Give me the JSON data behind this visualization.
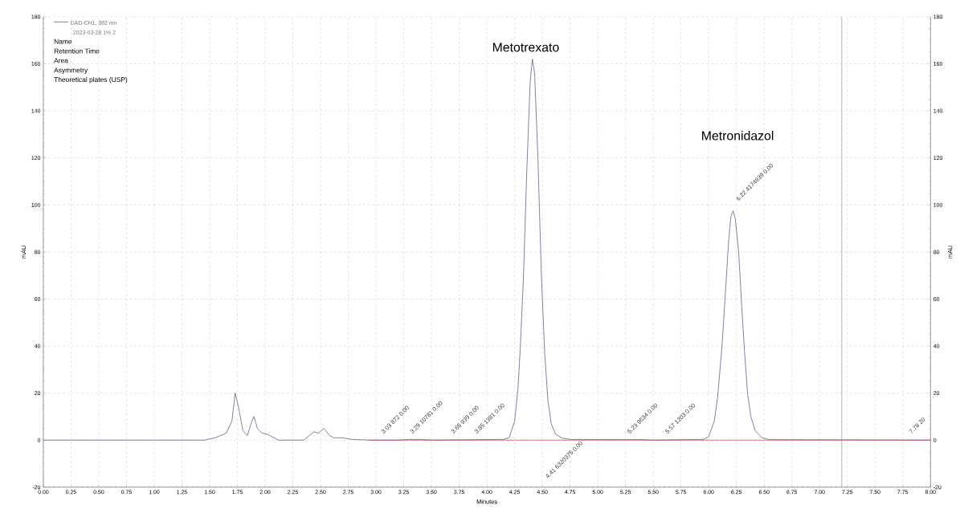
{
  "chart_data": {
    "type": "line",
    "xlabel": "Minutes",
    "ylabel": "mAU",
    "y2label": "mAU",
    "xlim": [
      0,
      8
    ],
    "ylim": [
      -20,
      180
    ],
    "y2lim": [
      -20,
      180
    ],
    "xticks": [
      {
        "value": 0,
        "label": "0.00"
      },
      {
        "value": 0.25,
        "label": "0.25"
      },
      {
        "value": 0.5,
        "label": "0.50"
      },
      {
        "value": 0.75,
        "label": "0.75"
      },
      {
        "value": 1,
        "label": "1.00"
      },
      {
        "value": 1.25,
        "label": "1.25"
      },
      {
        "value": 1.5,
        "label": "1.50"
      },
      {
        "value": 1.75,
        "label": "1.75"
      },
      {
        "value": 2,
        "label": "2.00"
      },
      {
        "value": 2.25,
        "label": "2.25"
      },
      {
        "value": 2.5,
        "label": "2.50"
      },
      {
        "value": 2.75,
        "label": "2.75"
      },
      {
        "value": 3,
        "label": "3.00"
      },
      {
        "value": 3.25,
        "label": "3.25"
      },
      {
        "value": 3.5,
        "label": "3.50"
      },
      {
        "value": 3.75,
        "label": "3.75"
      },
      {
        "value": 4,
        "label": "4.00"
      },
      {
        "value": 4.25,
        "label": "4.25"
      },
      {
        "value": 4.5,
        "label": "4.50"
      },
      {
        "value": 4.75,
        "label": "4.75"
      },
      {
        "value": 5,
        "label": "5.00"
      },
      {
        "value": 5.25,
        "label": "5.25"
      },
      {
        "value": 5.5,
        "label": "5.50"
      },
      {
        "value": 5.75,
        "label": "5.75"
      },
      {
        "value": 6,
        "label": "6.00"
      },
      {
        "value": 6.25,
        "label": "6.25"
      },
      {
        "value": 6.5,
        "label": "6.50"
      },
      {
        "value": 6.75,
        "label": "6.75"
      },
      {
        "value": 7,
        "label": "7.00"
      },
      {
        "value": 7.25,
        "label": "7.25"
      },
      {
        "value": 7.5,
        "label": "7.50"
      },
      {
        "value": 7.75,
        "label": "7.75"
      },
      {
        "value": 8,
        "label": "8.00"
      }
    ],
    "yticks": [
      -20,
      0,
      20,
      40,
      60,
      80,
      100,
      120,
      140,
      160,
      180
    ],
    "y2ticks": [
      -20,
      0,
      20,
      40,
      60,
      80,
      100,
      120,
      140,
      160,
      180
    ],
    "grid": true,
    "legend": "top left",
    "series": [
      {
        "name": "DAD-CH1, 382 nm",
        "color": "#4a4a7a",
        "x": [
          0,
          1.45,
          1.55,
          1.65,
          1.7,
          1.73,
          1.76,
          1.8,
          1.84,
          1.88,
          1.9,
          1.93,
          1.97,
          2.02,
          2.08,
          2.12,
          2.35,
          2.4,
          2.44,
          2.48,
          2.53,
          2.58,
          2.62,
          2.7,
          2.78,
          2.95,
          3.2,
          3.3,
          3.4,
          3.5,
          4.15,
          4.2,
          4.25,
          4.28,
          4.3,
          4.33,
          4.36,
          4.39,
          4.41,
          4.43,
          4.46,
          4.49,
          4.52,
          4.55,
          4.58,
          4.62,
          4.68,
          4.75,
          5.2,
          5.3,
          5.4,
          5.5,
          5.95,
          6.0,
          6.05,
          6.08,
          6.12,
          6.15,
          6.18,
          6.2,
          6.22,
          6.24,
          6.27,
          6.3,
          6.32,
          6.35,
          6.38,
          6.42,
          6.48,
          6.55,
          8
        ],
        "values": [
          0,
          0,
          1,
          3,
          8,
          20,
          14,
          4,
          2,
          8,
          10,
          5,
          3,
          2.5,
          1,
          0,
          0,
          2,
          3.5,
          3,
          5,
          2,
          1,
          1,
          0.3,
          0,
          0,
          0.3,
          0.3,
          0,
          0.3,
          1,
          8,
          22,
          38,
          70,
          115,
          152,
          162,
          156,
          120,
          72,
          38,
          17,
          7,
          2.5,
          0.8,
          0.3,
          0.2,
          0.2,
          0.2,
          0,
          0.3,
          1.5,
          8,
          18,
          40,
          62,
          85,
          95,
          97.5,
          94,
          80,
          55,
          40,
          20,
          10,
          4,
          1,
          0.2,
          0
        ]
      },
      {
        "color": "#d04040",
        "x": [
          2.93,
          8
        ],
        "values": [
          0,
          0
        ]
      }
    ],
    "ref_lines": [
      {
        "axis": "x",
        "value": 7.2,
        "color": "#a0a0a0"
      }
    ],
    "annotations": [
      "2023-03-28 1% 2",
      "Name",
      "Retention Time",
      "Area",
      "Asymmetry",
      "Theoretical plates (USP)",
      "Metotrexato",
      "Metronidazol",
      "3.03  872  0.00",
      "3.29  10781  0.00",
      "3.65  939  0.00",
      "3.85  1381  0.00",
      "4.41  6320375  0.00",
      "5.23  9634  0.00",
      "5.57  1203  0.00",
      "6.22  4174939  0.00",
      "7.78  20"
    ]
  }
}
